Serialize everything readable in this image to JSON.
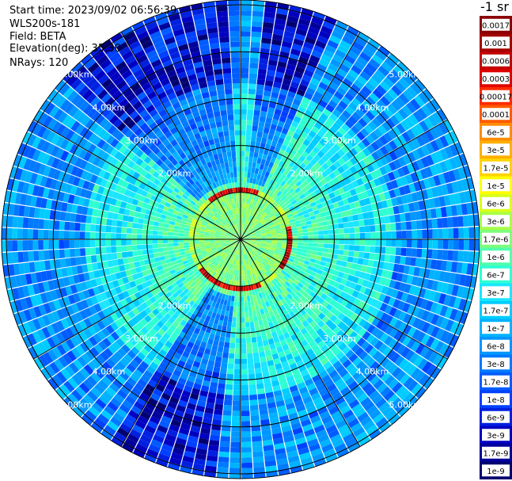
{
  "header": {
    "start_time": "Start time: 2023/09/02 06:56:39",
    "instrument": "WLS200s-181",
    "field": "Field: BETA",
    "elevation": "Elevation(deg): 35.30",
    "nrays": "NRays: 120",
    "unit": "-1 sr"
  },
  "chart_data": {
    "type": "heatmap",
    "projection": "polar",
    "field": "BETA",
    "n_rays": 120,
    "range_rings_km": [
      1,
      2,
      3,
      4,
      5
    ],
    "range_labels": [
      "2.00km",
      "3.00km",
      "4.00km",
      "5.00km"
    ],
    "max_range_km": 5.1,
    "spoke_angles_deg": [
      0,
      30,
      60,
      90,
      120,
      150,
      180,
      210,
      240,
      270,
      300,
      330
    ],
    "color_scale": "log",
    "colorbar_labels": [
      "0.0017",
      "0.001",
      "0.0006",
      "0.0003",
      "0.00017",
      "0.0001",
      "6e-5",
      "3e-5",
      "1.7e-5",
      "1e-5",
      "6e-6",
      "3e-6",
      "1.7e-6",
      "1e-6",
      "6e-7",
      "3e-7",
      "1.7e-7",
      "1e-7",
      "6e-8",
      "3e-8",
      "1.7e-8",
      "1e-8",
      "6e-9",
      "3e-9",
      "1.7e-9",
      "1e-9"
    ],
    "colorbar_colors": [
      "#8b0000",
      "#a50000",
      "#c40000",
      "#e00000",
      "#ff2a00",
      "#ff5a00",
      "#ff8c00",
      "#ffb000",
      "#ffd200",
      "#ffff00",
      "#d8ff1a",
      "#a6ff47",
      "#7dff7a",
      "#52ffad",
      "#2effd2",
      "#1ae6ff",
      "#00ccff",
      "#00b2ff",
      "#0096ff",
      "#007aff",
      "#005cff",
      "#0040ff",
      "#0020e0",
      "#0000c0",
      "#00009a",
      "#000070"
    ],
    "high_backscatter_ring_km": 1.0
  }
}
